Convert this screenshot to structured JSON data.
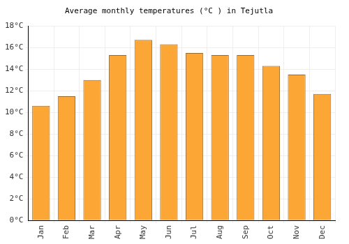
{
  "chart_data": {
    "type": "bar",
    "title": "Average monthly temperatures (°C ) in Tejutla",
    "categories": [
      "Jan",
      "Feb",
      "Mar",
      "Apr",
      "May",
      "Jun",
      "Jul",
      "Aug",
      "Sep",
      "Oct",
      "Nov",
      "Dec"
    ],
    "values": [
      10.6,
      11.5,
      13.0,
      15.3,
      16.7,
      16.3,
      15.5,
      15.3,
      15.3,
      14.3,
      13.5,
      11.7
    ],
    "color": "#fca636",
    "ylim": [
      0,
      18
    ],
    "yticks": [
      {
        "value": 0,
        "label": "0°C"
      },
      {
        "value": 2,
        "label": "2°C"
      },
      {
        "value": 4,
        "label": "4°C"
      },
      {
        "value": 6,
        "label": "6°C"
      },
      {
        "value": 8,
        "label": "8°C"
      },
      {
        "value": 10,
        "label": "10°C"
      },
      {
        "value": 12,
        "label": "12°C"
      },
      {
        "value": 14,
        "label": "14°C"
      },
      {
        "value": 16,
        "label": "16°C"
      },
      {
        "value": 18,
        "label": "18°C"
      }
    ],
    "grid": true
  }
}
